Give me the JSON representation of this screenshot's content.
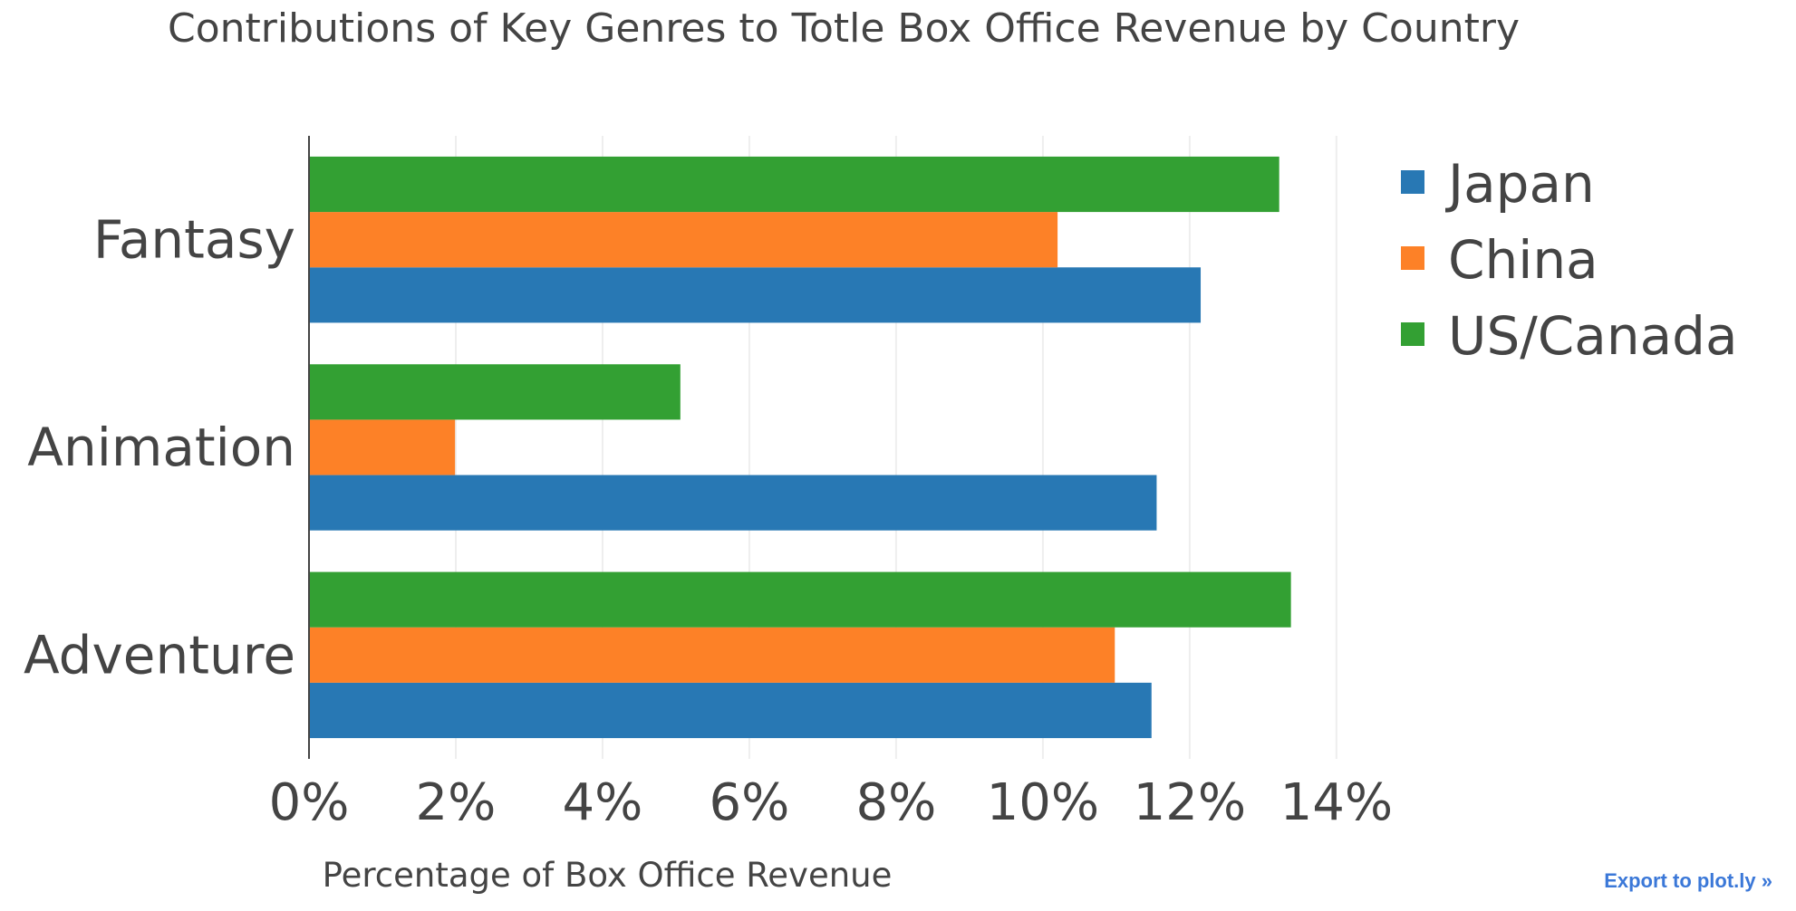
{
  "chart_data": {
    "type": "bar",
    "orientation": "horizontal",
    "title": "Contributions of Key Genres to Totle Box Office Revenue by Country",
    "xlabel": "Percentage of Box Office Revenue",
    "ylabel": "",
    "categories": [
      "Fantasy",
      "Animation",
      "Adventure"
    ],
    "series": [
      {
        "name": "Japan",
        "color": "#2878b4",
        "values": [
          12.15,
          11.55,
          11.48
        ]
      },
      {
        "name": "China",
        "color": "#fd8127",
        "values": [
          10.2,
          1.99,
          10.98
        ]
      },
      {
        "name": "US/Canada",
        "color": "#33a033",
        "values": [
          13.22,
          5.06,
          13.38
        ]
      }
    ],
    "xlim": [
      0,
      14
    ],
    "xticks": [
      0,
      2,
      4,
      6,
      8,
      10,
      12,
      14
    ],
    "xtick_labels": [
      "0%",
      "2%",
      "4%",
      "6%",
      "8%",
      "10%",
      "12%",
      "14%"
    ],
    "grid": true,
    "legend_position": "top-right"
  },
  "export_label": "Export to plot.ly »"
}
